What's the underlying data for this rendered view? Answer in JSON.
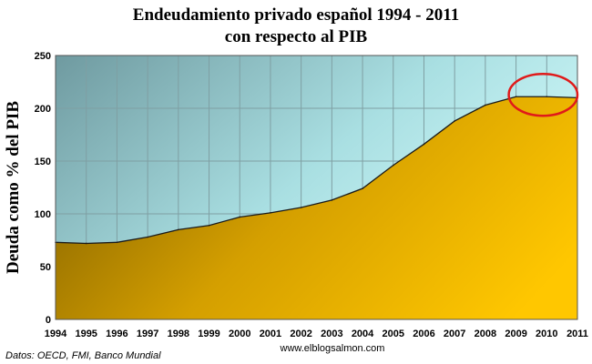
{
  "chart_data": {
    "type": "area",
    "title": [
      "Endeudamiento privado español 1994 - 2011",
      "con respecto al PIB"
    ],
    "ylabel": "Deuda como % del PIB",
    "xlabel": "",
    "x": [
      "1994",
      "1995",
      "1996",
      "1997",
      "1998",
      "1999",
      "2000",
      "2001",
      "2002",
      "2003",
      "2004",
      "2005",
      "2006",
      "2007",
      "2008",
      "2009",
      "2010",
      "2011"
    ],
    "values": [
      73,
      72,
      73,
      78,
      85,
      89,
      97,
      101,
      106,
      113,
      124,
      146,
      166,
      188,
      203,
      211,
      211,
      210
    ],
    "ylim": [
      0,
      250
    ],
    "yticks": [
      0,
      50,
      100,
      150,
      200,
      250
    ],
    "grid": true,
    "highlight": {
      "shape": "ellipse",
      "color": "#e01a1a",
      "from": "2009",
      "to": "2011",
      "y": 211
    },
    "colors": {
      "area": "#f0b400",
      "plot_bg": "#bfeff0",
      "highlight": "#e01a1a"
    },
    "source": "Datos: OECD, FMI, Banco Mundial",
    "credit": "www.elblogsalmon.com"
  }
}
